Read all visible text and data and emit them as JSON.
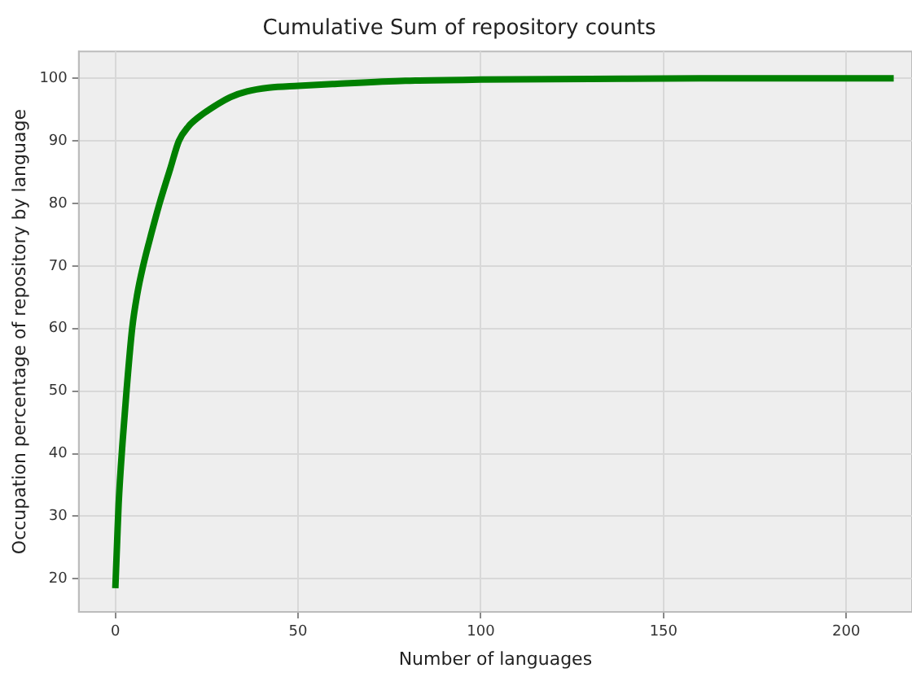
{
  "chart_data": {
    "type": "line",
    "title": "Cumulative Sum of repository counts",
    "xlabel": "Number of languages",
    "ylabel": "Occupation percentage of repository by language",
    "series": [
      {
        "color": "#008000",
        "x": [
          0,
          0.5,
          0.9,
          2,
          3.1,
          4.6,
          6,
          7.6,
          10,
          12.1,
          15,
          17.4,
          20,
          22.6,
          27,
          31.5,
          36,
          42,
          50,
          60,
          79.4,
          100,
          130,
          160,
          213
        ],
        "values": [
          18.5,
          26,
          31.9,
          42,
          50.3,
          60,
          65.5,
          70,
          75.5,
          80,
          85.5,
          90,
          92.3,
          93.7,
          95.5,
          97,
          97.9,
          98.5,
          98.8,
          99.1,
          99.6,
          99.8,
          99.9,
          100,
          100
        ]
      }
    ],
    "xlim": [
      -10,
      218
    ],
    "ylim": [
      14.7,
      104.3
    ],
    "xticks": [
      0,
      50,
      100,
      150,
      200
    ],
    "yticks": [
      20,
      30,
      40,
      50,
      60,
      70,
      80,
      90,
      100
    ],
    "grid": true,
    "legend": false,
    "marker": "none",
    "line_style": "solid"
  }
}
